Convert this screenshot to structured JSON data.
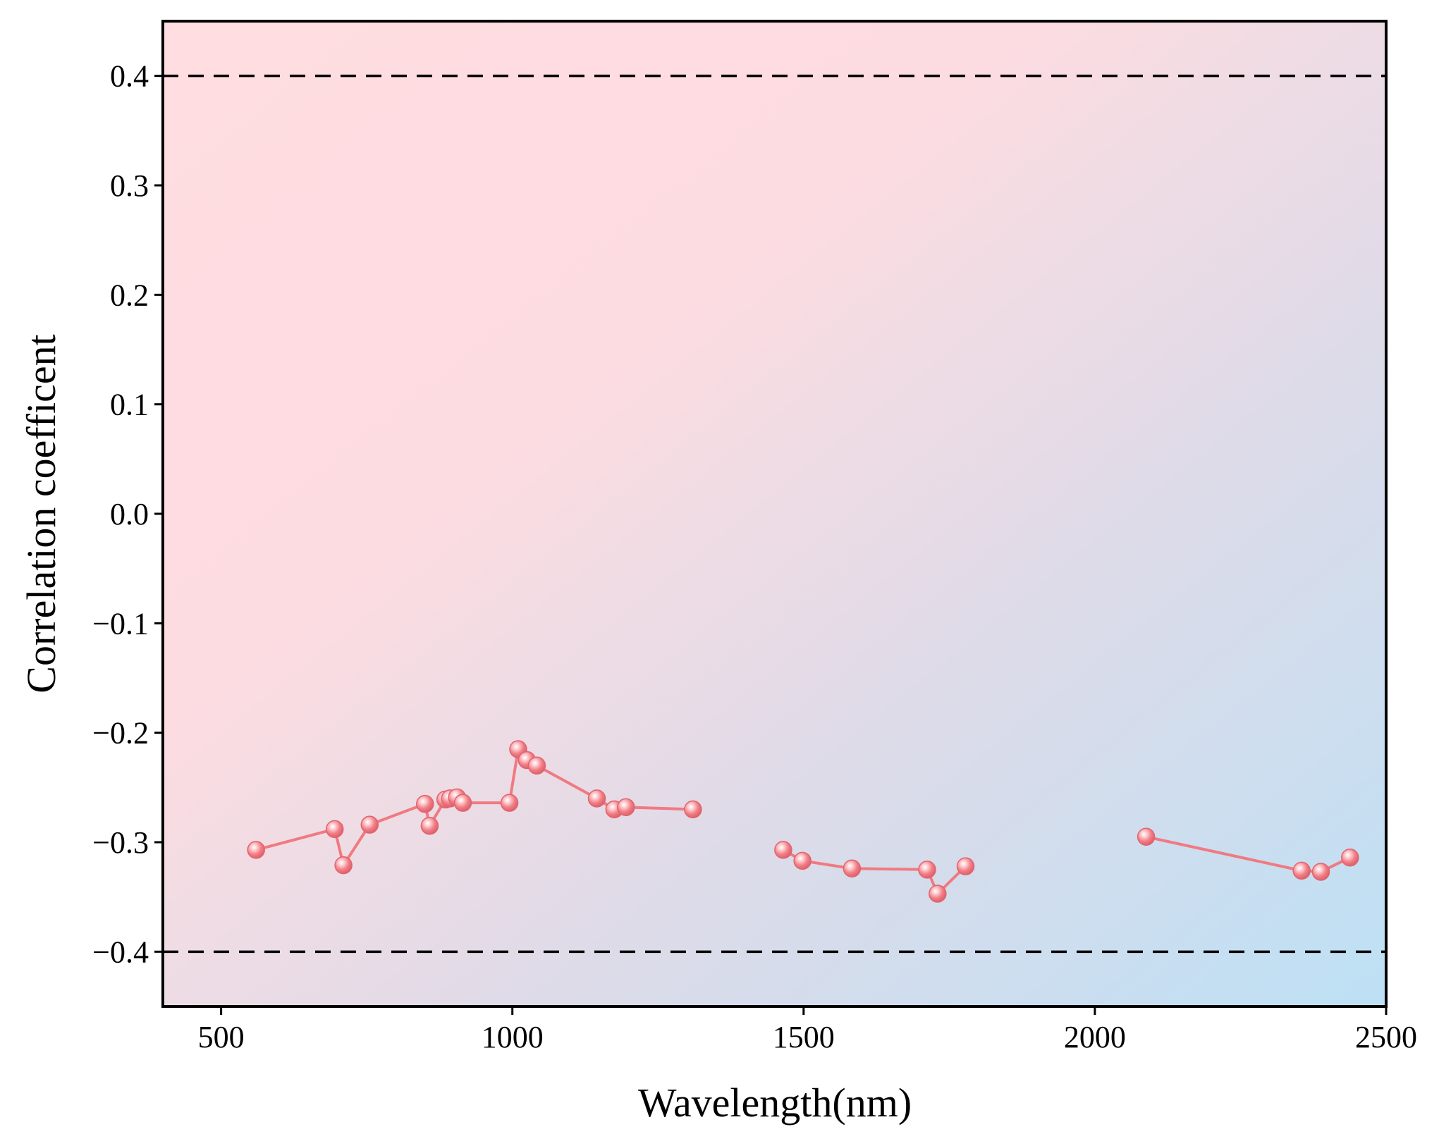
{
  "chart_data": {
    "type": "line",
    "title": "",
    "xlabel": "Wavelength(nm)",
    "ylabel": "Correlation coefficent",
    "xlim": [
      400,
      2500
    ],
    "ylim": [
      -0.45,
      0.45
    ],
    "xticks": [
      500,
      1000,
      1500,
      2000,
      2500
    ],
    "xtick_labels": [
      "500",
      "1000",
      "1500",
      "2000",
      "2500"
    ],
    "yticks": [
      0.4,
      0.3,
      0.2,
      0.1,
      0.0,
      -0.1,
      -0.2,
      -0.3,
      -0.4
    ],
    "ytick_labels": [
      "0.4",
      "0.3",
      "0.2",
      "0.1",
      "0.0",
      "−0.1",
      "−0.2",
      "−0.3",
      "−0.4"
    ],
    "reference_lines": [
      0.4,
      -0.4
    ],
    "grid": false,
    "legend": "none",
    "series": [
      {
        "color": "#f07a82",
        "segments": [
          {
            "x": [
              560,
              695,
              710,
              755,
              850,
              858,
              885,
              893,
              905,
              915,
              995,
              1010,
              1025,
              1042,
              1145,
              1175,
              1195,
              1310
            ],
            "y": [
              -0.307,
              -0.288,
              -0.321,
              -0.284,
              -0.265,
              -0.285,
              -0.261,
              -0.26,
              -0.259,
              -0.264,
              -0.264,
              -0.215,
              -0.225,
              -0.23,
              -0.26,
              -0.27,
              -0.268,
              -0.27
            ]
          },
          {
            "x": [
              1465,
              1498,
              1583,
              1712,
              1730,
              1778
            ],
            "y": [
              -0.307,
              -0.317,
              -0.324,
              -0.325,
              -0.347,
              -0.322
            ]
          },
          {
            "x": [
              2088,
              2355,
              2388,
              2438
            ],
            "y": [
              -0.295,
              -0.326,
              -0.327,
              -0.314
            ]
          }
        ]
      }
    ],
    "background_gradient": [
      "#ffdde1",
      "#bde0f5"
    ]
  }
}
